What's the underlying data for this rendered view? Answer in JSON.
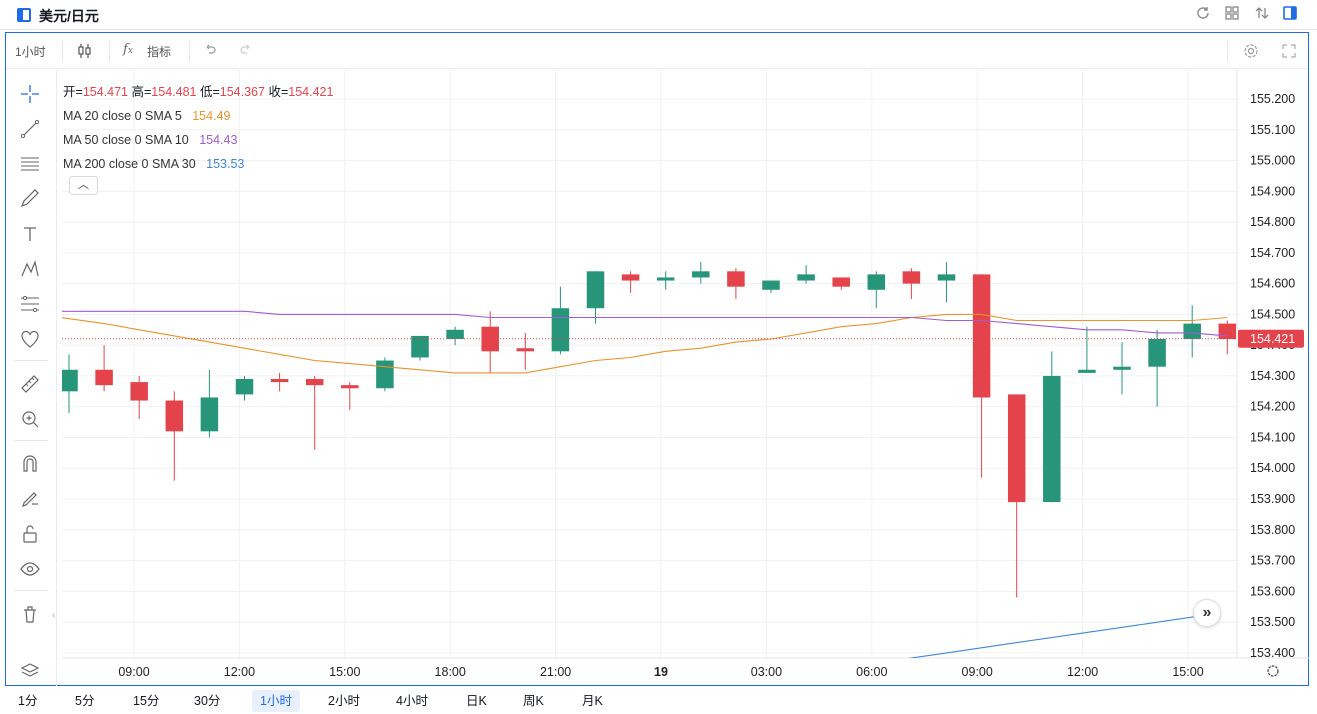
{
  "window": {
    "title": "美元/日元"
  },
  "toolbar": {
    "interval": "1小时",
    "indicators_label": "指标"
  },
  "legend": {
    "ohlc": {
      "open_label": "开=",
      "open": "154.471",
      "high_label": "高=",
      "high": "154.481",
      "low_label": "低=",
      "low": "154.367",
      "close_label": "收=",
      "close": "154.421"
    },
    "ma": [
      {
        "label": "MA 20 close 0 SMA 5",
        "value": "154.49",
        "color": "#e8932c"
      },
      {
        "label": "MA 50 close 0 SMA 10",
        "value": "154.43",
        "color": "#a05bd6"
      },
      {
        "label": "MA 200 close 0 SMA 30",
        "value": "153.53",
        "color": "#3e88d8"
      }
    ]
  },
  "timeframes": [
    "1分",
    "5分",
    "15分",
    "30分",
    "1小时",
    "2小时",
    "4小时",
    "日K",
    "周K",
    "月K"
  ],
  "active_timeframe": "1小时",
  "colors": {
    "up": "#26957a",
    "down": "#e5434c",
    "accent": "#1e6be6"
  },
  "chart_data": {
    "type": "candlestick",
    "price_axis": [
      "155.200",
      "155.100",
      "155.000",
      "154.900",
      "154.800",
      "154.700",
      "154.600",
      "154.500",
      "154.400",
      "154.300",
      "154.200",
      "154.100",
      "154.000",
      "153.900",
      "153.800",
      "153.700",
      "153.600",
      "153.500",
      "153.400"
    ],
    "time_axis": [
      {
        "label": "09:00",
        "bold": false
      },
      {
        "label": "12:00",
        "bold": false
      },
      {
        "label": "15:00",
        "bold": false
      },
      {
        "label": "18:00",
        "bold": false
      },
      {
        "label": "21:00",
        "bold": false
      },
      {
        "label": "19",
        "bold": true
      },
      {
        "label": "03:00",
        "bold": false
      },
      {
        "label": "06:00",
        "bold": false
      },
      {
        "label": "09:00",
        "bold": false
      },
      {
        "label": "12:00",
        "bold": false
      },
      {
        "label": "15:00",
        "bold": false
      }
    ],
    "last_price": "154.421",
    "candles": [
      {
        "o": 154.25,
        "h": 154.37,
        "l": 154.18,
        "c": 154.32
      },
      {
        "o": 154.32,
        "h": 154.4,
        "l": 154.25,
        "c": 154.27
      },
      {
        "o": 154.28,
        "h": 154.3,
        "l": 154.16,
        "c": 154.22
      },
      {
        "o": 154.22,
        "h": 154.25,
        "l": 153.96,
        "c": 154.12
      },
      {
        "o": 154.12,
        "h": 154.32,
        "l": 154.1,
        "c": 154.23
      },
      {
        "o": 154.24,
        "h": 154.3,
        "l": 154.22,
        "c": 154.29
      },
      {
        "o": 154.29,
        "h": 154.31,
        "l": 154.25,
        "c": 154.28
      },
      {
        "o": 154.29,
        "h": 154.3,
        "l": 154.06,
        "c": 154.27
      },
      {
        "o": 154.27,
        "h": 154.28,
        "l": 154.19,
        "c": 154.26
      },
      {
        "o": 154.26,
        "h": 154.36,
        "l": 154.25,
        "c": 154.35
      },
      {
        "o": 154.36,
        "h": 154.43,
        "l": 154.35,
        "c": 154.43
      },
      {
        "o": 154.42,
        "h": 154.46,
        "l": 154.4,
        "c": 154.45
      },
      {
        "o": 154.46,
        "h": 154.51,
        "l": 154.31,
        "c": 154.38
      },
      {
        "o": 154.39,
        "h": 154.44,
        "l": 154.32,
        "c": 154.38
      },
      {
        "o": 154.38,
        "h": 154.59,
        "l": 154.37,
        "c": 154.52
      },
      {
        "o": 154.52,
        "h": 154.64,
        "l": 154.47,
        "c": 154.64
      },
      {
        "o": 154.63,
        "h": 154.64,
        "l": 154.57,
        "c": 154.61
      },
      {
        "o": 154.61,
        "h": 154.64,
        "l": 154.58,
        "c": 154.62
      },
      {
        "o": 154.62,
        "h": 154.67,
        "l": 154.6,
        "c": 154.64
      },
      {
        "o": 154.64,
        "h": 154.65,
        "l": 154.55,
        "c": 154.59
      },
      {
        "o": 154.58,
        "h": 154.61,
        "l": 154.57,
        "c": 154.61
      },
      {
        "o": 154.61,
        "h": 154.66,
        "l": 154.6,
        "c": 154.63
      },
      {
        "o": 154.62,
        "h": 154.62,
        "l": 154.58,
        "c": 154.59
      },
      {
        "o": 154.58,
        "h": 154.64,
        "l": 154.52,
        "c": 154.63
      },
      {
        "o": 154.64,
        "h": 154.65,
        "l": 154.55,
        "c": 154.6
      },
      {
        "o": 154.61,
        "h": 154.67,
        "l": 154.54,
        "c": 154.63
      },
      {
        "o": 154.63,
        "h": 154.63,
        "l": 153.97,
        "c": 154.23
      },
      {
        "o": 154.24,
        "h": 154.24,
        "l": 153.58,
        "c": 153.89
      },
      {
        "o": 153.89,
        "h": 154.38,
        "l": 153.89,
        "c": 154.3
      },
      {
        "o": 154.31,
        "h": 154.46,
        "l": 154.31,
        "c": 154.32
      },
      {
        "o": 154.32,
        "h": 154.41,
        "l": 154.24,
        "c": 154.33
      },
      {
        "o": 154.33,
        "h": 154.45,
        "l": 154.2,
        "c": 154.42
      },
      {
        "o": 154.42,
        "h": 154.53,
        "l": 154.36,
        "c": 154.47
      },
      {
        "o": 154.47,
        "h": 154.48,
        "l": 154.37,
        "c": 154.42
      }
    ],
    "ma_series": [
      {
        "name": "MA 20 close 0 SMA 5",
        "points": [
          154.49,
          154.47,
          154.45,
          154.43,
          154.41,
          154.39,
          154.37,
          154.35,
          154.34,
          154.33,
          154.32,
          154.31,
          154.31,
          154.31,
          154.33,
          154.35,
          154.36,
          154.38,
          154.39,
          154.41,
          154.42,
          154.44,
          154.46,
          154.47,
          154.49,
          154.5,
          154.5,
          154.48,
          154.48,
          154.48,
          154.48,
          154.48,
          154.48,
          154.49
        ]
      },
      {
        "name": "MA 50 close 0 SMA 10",
        "points": [
          154.51,
          154.51,
          154.51,
          154.51,
          154.51,
          154.51,
          154.5,
          154.5,
          154.5,
          154.5,
          154.5,
          154.5,
          154.49,
          154.49,
          154.49,
          154.49,
          154.49,
          154.49,
          154.49,
          154.49,
          154.49,
          154.49,
          154.49,
          154.49,
          154.49,
          154.48,
          154.48,
          154.47,
          154.46,
          154.45,
          154.45,
          154.44,
          154.44,
          154.43
        ]
      },
      {
        "name": "MA 200 close 0 SMA 30",
        "points": [
          153.35,
          153.37,
          153.4,
          153.43,
          153.46,
          153.49,
          153.52
        ]
      }
    ]
  }
}
